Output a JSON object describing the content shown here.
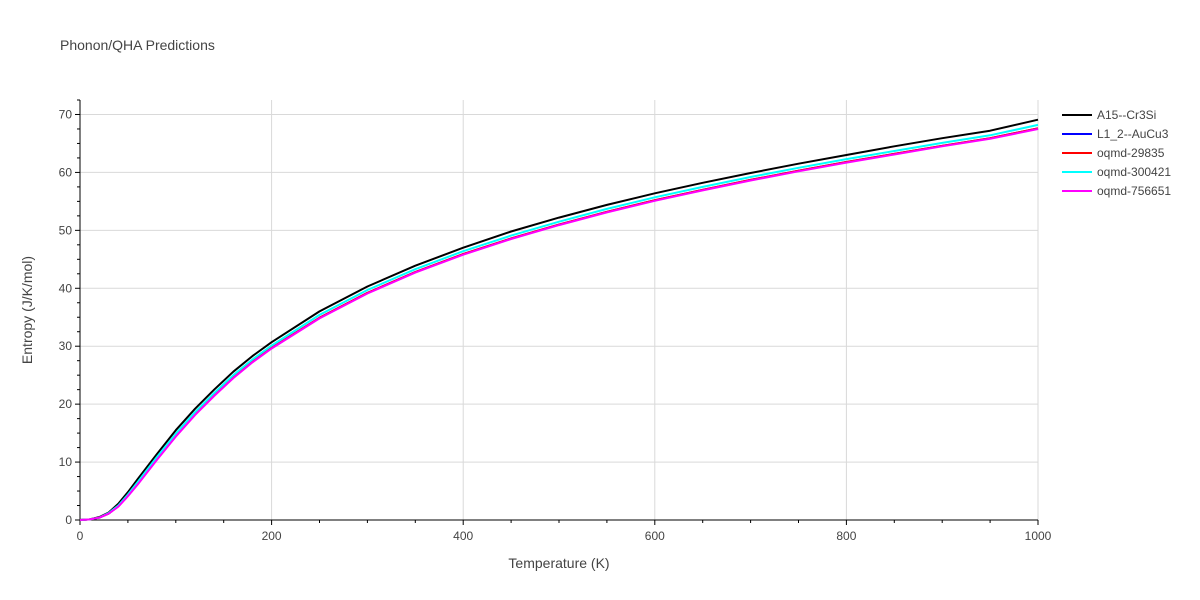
{
  "chart_data": {
    "type": "line",
    "title": "Phonon/QHA Predictions",
    "xlabel": "Temperature (K)",
    "ylabel": "Entropy (J/K/mol)",
    "xlim": [
      0,
      1000
    ],
    "ylim": [
      0,
      72.5
    ],
    "x_ticks": [
      0,
      200,
      400,
      600,
      800,
      1000
    ],
    "y_ticks": [
      0,
      10,
      20,
      30,
      40,
      50,
      60,
      70
    ],
    "grid": true,
    "legend_position": "top-right",
    "x": [
      0,
      10,
      20,
      30,
      40,
      50,
      60,
      80,
      100,
      120,
      140,
      160,
      180,
      200,
      250,
      300,
      350,
      400,
      450,
      500,
      550,
      600,
      650,
      700,
      750,
      800,
      850,
      900,
      950,
      1000
    ],
    "series": [
      {
        "name": "A15--Cr3Si",
        "color": "#000000",
        "values": [
          0,
          0.1,
          0.5,
          1.3,
          2.8,
          4.8,
          7.0,
          11.3,
          15.5,
          19.2,
          22.5,
          25.6,
          28.3,
          30.7,
          36.0,
          40.3,
          43.9,
          47.0,
          49.8,
          52.2,
          54.4,
          56.4,
          58.2,
          59.9,
          61.5,
          63.0,
          64.5,
          65.9,
          67.2,
          69.1
        ]
      },
      {
        "name": "L1_2--AuCu3",
        "color": "#0000ff",
        "values": [
          0,
          0.1,
          0.4,
          1.1,
          2.4,
          4.2,
          6.2,
          10.4,
          14.5,
          18.2,
          21.5,
          24.6,
          27.3,
          29.7,
          34.9,
          39.2,
          42.8,
          45.9,
          48.6,
          51.0,
          53.2,
          55.2,
          57.0,
          58.7,
          60.3,
          61.8,
          63.2,
          64.6,
          65.9,
          67.6
        ]
      },
      {
        "name": "oqmd-29835",
        "color": "#ff0000",
        "values": [
          0,
          0.1,
          0.4,
          1.1,
          2.4,
          4.2,
          6.2,
          10.4,
          14.5,
          18.2,
          21.5,
          24.6,
          27.3,
          29.7,
          34.9,
          39.2,
          42.8,
          45.9,
          48.6,
          51.0,
          53.2,
          55.2,
          57.0,
          58.7,
          60.3,
          61.8,
          63.2,
          64.6,
          65.9,
          67.6
        ]
      },
      {
        "name": "oqmd-300421",
        "color": "#00ffff",
        "values": [
          0,
          0.1,
          0.4,
          1.2,
          2.5,
          4.4,
          6.5,
          10.8,
          14.9,
          18.6,
          21.9,
          25.0,
          27.7,
          30.1,
          35.4,
          39.7,
          43.3,
          46.4,
          49.1,
          51.5,
          53.7,
          55.7,
          57.5,
          59.2,
          60.8,
          62.3,
          63.7,
          65.1,
          66.4,
          68.2
        ]
      },
      {
        "name": "oqmd-756651",
        "color": "#ff00ff",
        "values": [
          0,
          0.1,
          0.4,
          1.1,
          2.3,
          4.1,
          6.1,
          10.3,
          14.4,
          18.1,
          21.4,
          24.5,
          27.2,
          29.6,
          34.8,
          39.1,
          42.7,
          45.8,
          48.5,
          50.9,
          53.1,
          55.1,
          56.9,
          58.6,
          60.2,
          61.7,
          63.1,
          64.5,
          65.8,
          67.5
        ]
      }
    ]
  }
}
